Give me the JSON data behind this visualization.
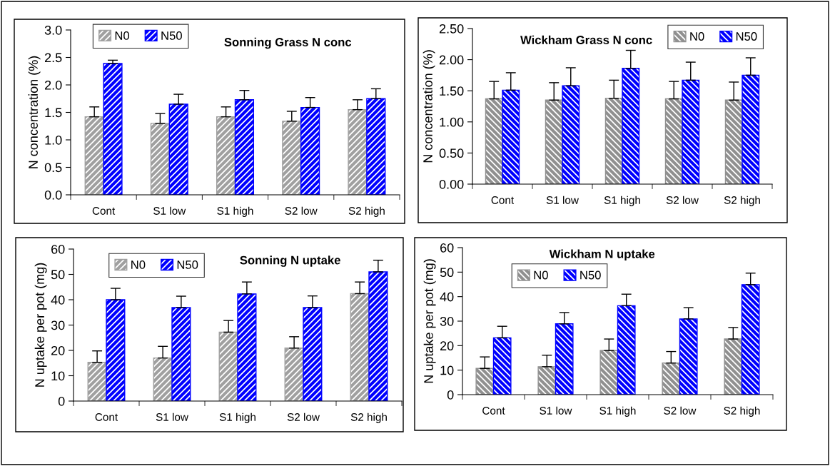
{
  "chart_data": [
    {
      "type": "bar",
      "title": "Sonning Grass N conc",
      "ylabel": "N concentration (%)",
      "categories": [
        "Cont",
        "S1 low",
        "S1 high",
        "S2 low",
        "S2 high"
      ],
      "ylim": [
        0,
        3
      ],
      "yticks": [
        {
          "value": 0,
          "label": "0.0"
        },
        {
          "value": 0.5,
          "label": "0.5"
        },
        {
          "value": 1,
          "label": "1.0"
        },
        {
          "value": 1.5,
          "label": "1.5"
        },
        {
          "value": 2,
          "label": "2.0"
        },
        {
          "value": 2.5,
          "label": "2.5"
        },
        {
          "value": 3,
          "label": "3.0"
        }
      ],
      "legend": "top left",
      "grid": false,
      "series": [
        {
          "name": "N0",
          "color": "#a0a0a0",
          "values": [
            1.42,
            1.3,
            1.42,
            1.34,
            1.55
          ],
          "errors": [
            [
              1.42,
              1.6
            ],
            [
              1.3,
              1.48
            ],
            [
              1.42,
              1.6
            ],
            [
              1.34,
              1.52
            ],
            [
              1.55,
              1.73
            ]
          ]
        },
        {
          "name": "N50",
          "color": "#0000ff",
          "values": [
            2.39,
            1.65,
            1.73,
            1.59,
            1.75
          ],
          "errors": [
            [
              2.39,
              2.45
            ],
            [
              1.65,
              1.83
            ],
            [
              1.73,
              1.9
            ],
            [
              1.59,
              1.77
            ],
            [
              1.75,
              1.93
            ]
          ]
        }
      ]
    },
    {
      "type": "bar",
      "title": "Wickham Grass N conc",
      "ylabel": "N concentration (%)",
      "categories": [
        "Cont",
        "S1 low",
        "S1 high",
        "S2 low",
        "S2 high"
      ],
      "ylim": [
        0,
        2.5
      ],
      "yticks": [
        {
          "value": 0,
          "label": "0.00"
        },
        {
          "value": 0.5,
          "label": "0.50"
        },
        {
          "value": 1,
          "label": "1.00"
        },
        {
          "value": 1.5,
          "label": "1.50"
        },
        {
          "value": 2,
          "label": "2.00"
        },
        {
          "value": 2.5,
          "label": "2.50"
        }
      ],
      "legend": "top right",
      "grid": false,
      "series": [
        {
          "name": "N0",
          "color": "#909090",
          "values": [
            1.37,
            1.35,
            1.38,
            1.37,
            1.35
          ],
          "errors": [
            [
              1.37,
              1.65
            ],
            [
              1.35,
              1.63
            ],
            [
              1.38,
              1.67
            ],
            [
              1.37,
              1.65
            ],
            [
              1.35,
              1.64
            ]
          ]
        },
        {
          "name": "N50",
          "color": "#0000ff",
          "values": [
            1.51,
            1.58,
            1.86,
            1.67,
            1.75
          ],
          "errors": [
            [
              1.51,
              1.79
            ],
            [
              1.58,
              1.87
            ],
            [
              1.86,
              2.15
            ],
            [
              1.67,
              1.96
            ],
            [
              1.75,
              2.03
            ]
          ]
        }
      ]
    },
    {
      "type": "bar",
      "title": "Sonning N uptake",
      "ylabel": "N uptake per pot (mg)",
      "categories": [
        "Cont",
        "S1 low",
        "S1 high",
        "S2 low",
        "S2 high"
      ],
      "ylim": [
        0,
        60
      ],
      "yticks": [
        0,
        10,
        20,
        30,
        40,
        50,
        60
      ],
      "legend": "top left",
      "grid": false,
      "series": [
        {
          "name": "N0",
          "color": "#a0a0a0",
          "values": [
            15.3,
            17.0,
            27.2,
            20.9,
            42.4
          ],
          "errors": [
            [
              15.3,
              19.8
            ],
            [
              17.0,
              21.6
            ],
            [
              27.2,
              31.8
            ],
            [
              20.9,
              25.4
            ],
            [
              42.4,
              47.0
            ]
          ]
        },
        {
          "name": "N50",
          "color": "#0000ff",
          "values": [
            40.0,
            36.9,
            42.3,
            36.9,
            51.0
          ],
          "errors": [
            [
              40.0,
              44.5
            ],
            [
              36.9,
              41.4
            ],
            [
              42.3,
              47.0
            ],
            [
              36.9,
              41.5
            ],
            [
              51.0,
              55.6
            ]
          ]
        }
      ]
    },
    {
      "type": "bar",
      "title": "Wickham N uptake",
      "ylabel": "N uptake per pot (mg)",
      "categories": [
        "Cont",
        "S1 low",
        "S1 high",
        "S2 low",
        "S2 high"
      ],
      "ylim": [
        0,
        60
      ],
      "yticks": [
        0,
        10,
        20,
        30,
        40,
        50,
        60
      ],
      "legend": "top left",
      "grid": false,
      "series": [
        {
          "name": "N0",
          "color": "#909090",
          "values": [
            10.7,
            11.4,
            18.0,
            12.9,
            22.7
          ],
          "errors": [
            [
              10.7,
              15.4
            ],
            [
              11.4,
              16.1
            ],
            [
              18.0,
              22.7
            ],
            [
              12.9,
              17.6
            ],
            [
              22.7,
              27.4
            ]
          ]
        },
        {
          "name": "N50",
          "color": "#0000ff",
          "values": [
            23.2,
            28.9,
            36.3,
            30.9,
            44.9
          ],
          "errors": [
            [
              23.2,
              27.9
            ],
            [
              28.9,
              33.5
            ],
            [
              36.3,
              41.0
            ],
            [
              30.9,
              35.5
            ],
            [
              44.9,
              49.6
            ]
          ]
        }
      ]
    }
  ]
}
